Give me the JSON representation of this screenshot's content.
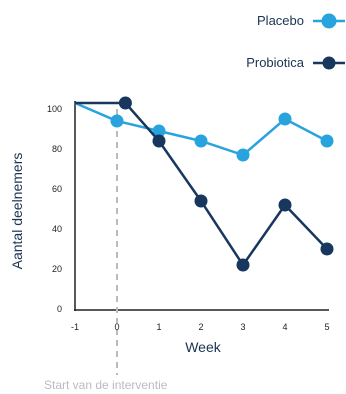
{
  "chart_data": {
    "type": "line",
    "title": "",
    "xlabel": "Week",
    "ylabel": "Aantal deelnemers",
    "x": [
      -1,
      0,
      1,
      2,
      3,
      4,
      5
    ],
    "x_ticks": [
      -1,
      0,
      1,
      2,
      3,
      4,
      5
    ],
    "y_ticks": [
      0,
      20,
      40,
      60,
      80,
      100
    ],
    "xlim": [
      -1,
      5
    ],
    "ylim": [
      0,
      104
    ],
    "grid": false,
    "legend_position": "top-right",
    "series": [
      {
        "name": "Placebo",
        "color": "#29a3dd",
        "points": [
          [
            -1,
            103
          ],
          [
            0,
            94
          ],
          [
            1,
            89
          ],
          [
            2,
            84
          ],
          [
            3,
            77
          ],
          [
            4,
            95
          ],
          [
            5,
            84
          ]
        ]
      },
      {
        "name": "Probiotica",
        "color": "#17375e",
        "points": [
          [
            -1,
            103
          ],
          [
            0.2,
            103
          ],
          [
            1,
            84
          ],
          [
            2,
            54
          ],
          [
            3,
            22
          ],
          [
            4,
            52
          ],
          [
            5,
            30
          ]
        ]
      }
    ],
    "annotation": {
      "text": "Start van de interventie",
      "x": 0
    }
  }
}
